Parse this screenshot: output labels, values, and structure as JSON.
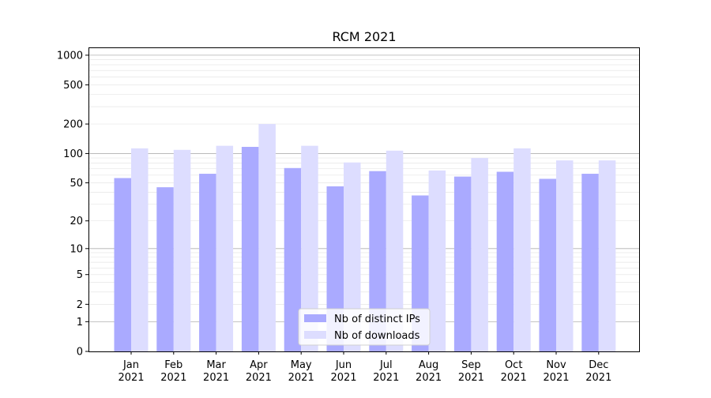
{
  "chart_data": {
    "type": "bar",
    "title": "RCM 2021",
    "xlabel": "",
    "ylabel": "",
    "yscale": "symlog",
    "ylim": [
      0,
      1200
    ],
    "ytick_values": [
      0,
      1,
      2,
      5,
      10,
      20,
      50,
      100,
      200,
      500,
      1000
    ],
    "ytick_labels": [
      "0",
      "1",
      "2",
      "5",
      "10",
      "20",
      "50",
      "100",
      "200",
      "500",
      "1000"
    ],
    "categories": [
      "Jan\n2021",
      "Feb\n2021",
      "Mar\n2021",
      "Apr\n2021",
      "May\n2021",
      "Jun\n2021",
      "Jul\n2021",
      "Aug\n2021",
      "Sep\n2021",
      "Oct\n2021",
      "Nov\n2021",
      "Dec\n2021"
    ],
    "series": [
      {
        "name": "Nb of distinct IPs",
        "color": "#aaaaff",
        "values": [
          56,
          45,
          62,
          117,
          71,
          46,
          66,
          37,
          58,
          65,
          55,
          62
        ]
      },
      {
        "name": "Nb of downloads",
        "color": "#ddddff",
        "values": [
          113,
          109,
          120,
          200,
          120,
          81,
          107,
          67,
          90,
          113,
          85,
          85
        ]
      }
    ],
    "grid": true,
    "legend_position": "bottom-center"
  }
}
